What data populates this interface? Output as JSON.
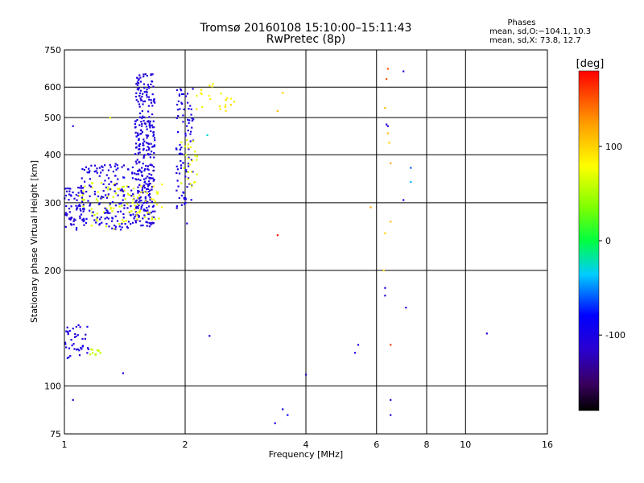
{
  "chart_data": {
    "type": "scatter",
    "title": "Tromsø 20160108 15:10:00–15:11:43",
    "subtitle": "RwPretec (8p)",
    "xlabel": "Frequency [MHz]",
    "ylabel": "Stationary phase Virtual Height [km]",
    "x_scale": "log",
    "y_scale": "log",
    "xlim": [
      1,
      16
    ],
    "ylim": [
      75,
      750
    ],
    "x_ticks": [
      1,
      2,
      4,
      6,
      8,
      10,
      16
    ],
    "y_ticks": [
      75,
      100,
      200,
      300,
      400,
      500,
      600,
      750
    ],
    "grid": true,
    "phase_stats": {
      "heading": "Phases",
      "o_line": "mean, sd,O:−104.1, 10.3",
      "x_line": "mean, sd,X:  73.8, 12.7"
    },
    "colorbar": {
      "label": "[deg]",
      "range": [
        -180,
        180
      ],
      "ticks": [
        -100,
        0,
        100
      ],
      "tick_labels": [
        "-100",
        "0",
        "100"
      ]
    },
    "traces": [
      {
        "f_range": [
          1.0,
          1.15
        ],
        "h_range": [
          118,
          145
        ],
        "phase": -105,
        "n": 40
      },
      {
        "f_range": [
          1.15,
          1.25
        ],
        "h_range": [
          120,
          127
        ],
        "phase": 60,
        "n": 10
      },
      {
        "f_range": [
          1.0,
          1.12
        ],
        "h_range": [
          255,
          330
        ],
        "phase": -105,
        "n": 70
      },
      {
        "f_range": [
          1.08,
          1.45
        ],
        "h_range": [
          255,
          340
        ],
        "phase": 70,
        "n": 60
      },
      {
        "f_range": [
          1.1,
          1.5
        ],
        "h_range": [
          255,
          380
        ],
        "phase": -100,
        "n": 160
      },
      {
        "f_range": [
          1.5,
          1.68
        ],
        "h_range": [
          260,
          650
        ],
        "phase": -105,
        "n": 320
      },
      {
        "f_range": [
          1.45,
          1.75
        ],
        "h_range": [
          270,
          340
        ],
        "phase": 75,
        "n": 40
      },
      {
        "f_range": [
          1.9,
          2.1
        ],
        "h_range": [
          290,
          600
        ],
        "phase": -100,
        "n": 90
      },
      {
        "f_range": [
          1.95,
          2.15
        ],
        "h_range": [
          330,
          450
        ],
        "phase": 70,
        "n": 25
      },
      {
        "f_range": [
          2.1,
          2.55
        ],
        "h_range": [
          520,
          620
        ],
        "phase": 85,
        "n": 20
      }
    ],
    "points": [
      {
        "f": 1.05,
        "h": 475,
        "phase": -105
      },
      {
        "f": 1.05,
        "h": 92,
        "phase": -105
      },
      {
        "f": 1.3,
        "h": 500,
        "phase": 70
      },
      {
        "f": 1.4,
        "h": 108,
        "phase": -105
      },
      {
        "f": 2.3,
        "h": 135,
        "phase": -100
      },
      {
        "f": 2.6,
        "h": 560,
        "phase": 80
      },
      {
        "f": 2.6,
        "h": 540,
        "phase": 95
      },
      {
        "f": 2.65,
        "h": 550,
        "phase": 90
      },
      {
        "f": 2.27,
        "h": 450,
        "phase": -30
      },
      {
        "f": 2.02,
        "h": 265,
        "phase": -100
      },
      {
        "f": 3.4,
        "h": 247,
        "phase": 170
      },
      {
        "f": 3.4,
        "h": 520,
        "phase": 110
      },
      {
        "f": 3.5,
        "h": 580,
        "phase": 100
      },
      {
        "f": 3.5,
        "h": 87,
        "phase": -100
      },
      {
        "f": 3.6,
        "h": 84,
        "phase": -80
      },
      {
        "f": 3.35,
        "h": 80,
        "phase": -100
      },
      {
        "f": 4.0,
        "h": 107,
        "phase": -120
      },
      {
        "f": 5.3,
        "h": 122,
        "phase": -100
      },
      {
        "f": 5.4,
        "h": 128,
        "phase": -100
      },
      {
        "f": 5.8,
        "h": 292,
        "phase": 120
      },
      {
        "f": 6.25,
        "h": 200,
        "phase": 90
      },
      {
        "f": 6.3,
        "h": 250,
        "phase": 100
      },
      {
        "f": 6.3,
        "h": 180,
        "phase": -105
      },
      {
        "f": 6.3,
        "h": 172,
        "phase": -105
      },
      {
        "f": 6.35,
        "h": 630,
        "phase": 150
      },
      {
        "f": 6.3,
        "h": 530,
        "phase": 110
      },
      {
        "f": 6.35,
        "h": 480,
        "phase": -110
      },
      {
        "f": 6.4,
        "h": 475,
        "phase": -105
      },
      {
        "f": 6.4,
        "h": 455,
        "phase": 110
      },
      {
        "f": 6.45,
        "h": 430,
        "phase": 100
      },
      {
        "f": 6.5,
        "h": 380,
        "phase": 120
      },
      {
        "f": 6.5,
        "h": 268,
        "phase": 110
      },
      {
        "f": 6.5,
        "h": 128,
        "phase": 160
      },
      {
        "f": 6.5,
        "h": 92,
        "phase": -105
      },
      {
        "f": 6.5,
        "h": 84,
        "phase": -105
      },
      {
        "f": 6.4,
        "h": 670,
        "phase": 150
      },
      {
        "f": 7.0,
        "h": 660,
        "phase": -105
      },
      {
        "f": 7.0,
        "h": 305,
        "phase": -90
      },
      {
        "f": 7.1,
        "h": 160,
        "phase": -105
      },
      {
        "f": 7.3,
        "h": 370,
        "phase": -60
      },
      {
        "f": 7.3,
        "h": 340,
        "phase": -40
      },
      {
        "f": 11.3,
        "h": 137,
        "phase": -100
      }
    ]
  }
}
